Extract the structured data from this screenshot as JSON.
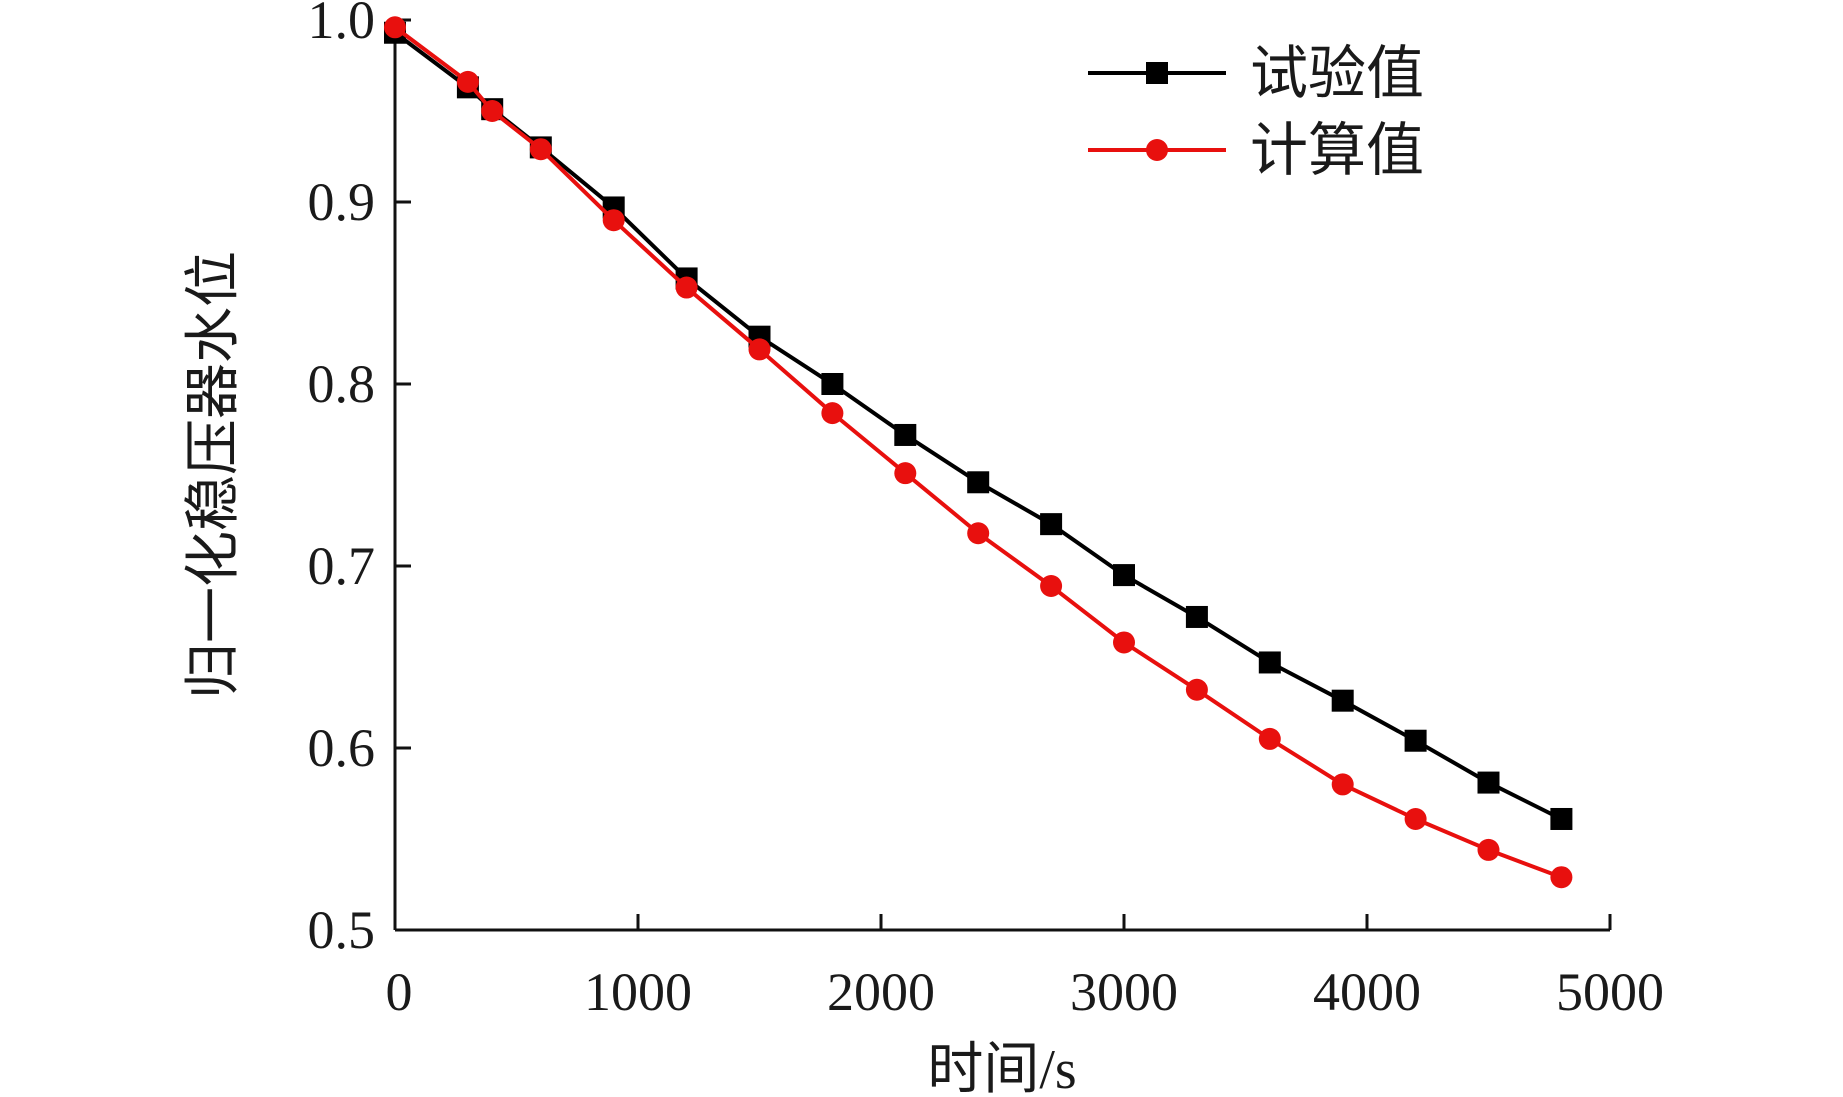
{
  "chart_data": {
    "type": "line",
    "title": "",
    "xlabel": "时间/s",
    "ylabel": "归一化稳压器水位",
    "xlim": [
      0,
      5000
    ],
    "ylim": [
      0.5,
      1.0
    ],
    "xticks": [
      0,
      1000,
      2000,
      3000,
      4000,
      5000
    ],
    "yticks": [
      0.5,
      0.6,
      0.7,
      0.8,
      0.9,
      1.0
    ],
    "xtick_labels": [
      "0",
      "1000",
      "2000",
      "3000",
      "4000",
      "5000"
    ],
    "ytick_labels": [
      "0.5",
      "0.6",
      "0.7",
      "0.8",
      "0.9",
      "1.0"
    ],
    "grid": false,
    "legend_position": "top-right",
    "x": [
      0,
      300,
      400,
      600,
      900,
      1200,
      1500,
      1800,
      2100,
      2400,
      2700,
      3000,
      3300,
      3600,
      3900,
      4200,
      4500,
      4800
    ],
    "series": [
      {
        "name": "试验值",
        "color": "#000000",
        "marker": "square",
        "values": [
          0.993,
          0.963,
          0.951,
          0.93,
          0.897,
          0.858,
          0.826,
          0.8,
          0.772,
          0.746,
          0.723,
          0.695,
          0.672,
          0.647,
          0.626,
          0.604,
          0.581,
          0.561
        ]
      },
      {
        "name": "计算值",
        "color": "#e8100e",
        "marker": "circle",
        "values": [
          0.996,
          0.966,
          0.95,
          0.929,
          0.89,
          0.853,
          0.819,
          0.784,
          0.751,
          0.718,
          0.689,
          0.658,
          0.632,
          0.605,
          0.58,
          0.561,
          0.544,
          0.529
        ]
      }
    ]
  }
}
